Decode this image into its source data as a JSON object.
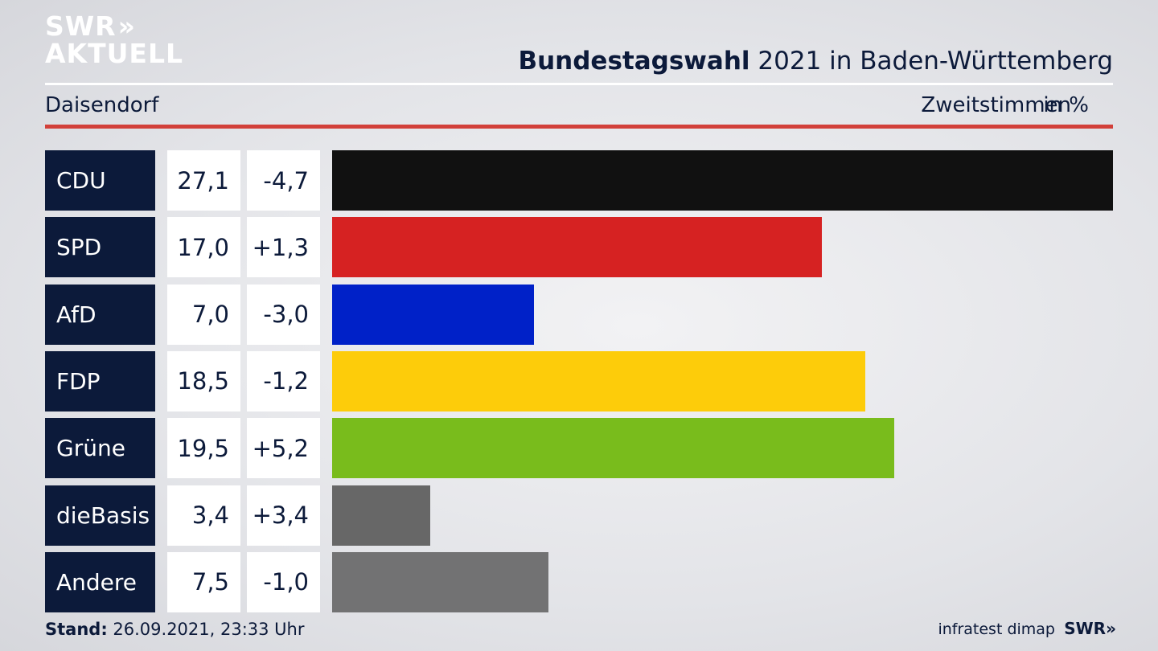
{
  "logo": {
    "line1": "SWR",
    "line2": "AKTUELL",
    "chevrons": "»"
  },
  "header": {
    "title_bold": "Bundestagswahl",
    "title_rest": " 2021 in Baden-Württemberg",
    "region": "Daisendorf",
    "measure": "Zweitstimmen",
    "unit": "in %"
  },
  "colors": {
    "navy": "#0c1a3a",
    "accent_red": "#d2403a"
  },
  "chart_data": {
    "type": "bar",
    "orientation": "horizontal",
    "categories": [
      "CDU",
      "SPD",
      "AfD",
      "FDP",
      "Grüne",
      "dieBasis",
      "Andere"
    ],
    "values": [
      27.1,
      17.0,
      7.0,
      18.5,
      19.5,
      3.4,
      7.5
    ],
    "value_labels": [
      "27,1",
      "17,0",
      "7,0",
      "18,5",
      "19,5",
      "3,4",
      "7,5"
    ],
    "diff_labels": [
      "-4,7",
      "+1,3",
      "-3,0",
      "-1,2",
      "+5,2",
      "+3,4",
      "-1,0"
    ],
    "bar_colors": [
      "#111111",
      "#d62222",
      "#0021c8",
      "#fdcc0a",
      "#79bc1c",
      "#676767",
      "#727273"
    ],
    "xlim": [
      0,
      27.1
    ]
  },
  "footer": {
    "stand_label": "Stand:",
    "stand_value": " 26.09.2021, 23:33 Uhr",
    "source": "infratest dimap",
    "brand": "SWR",
    "brand_chevrons": "»"
  }
}
